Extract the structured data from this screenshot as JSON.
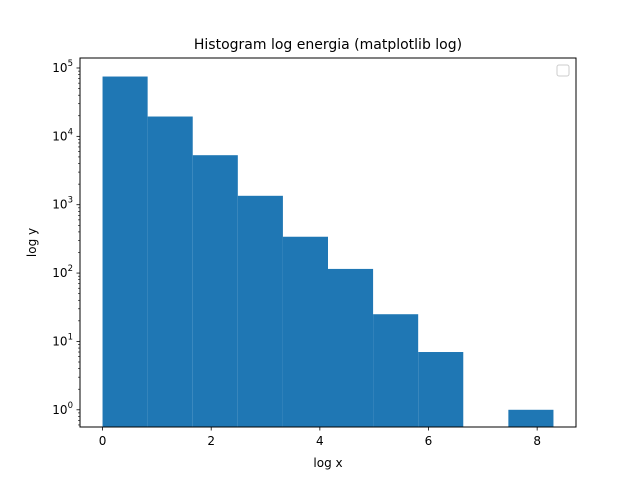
{
  "chart_data": {
    "type": "bar",
    "title": "Histogram log energia (matplotlib log)",
    "xlabel": "log x",
    "ylabel": "log y",
    "yscale": "log",
    "xlim": [
      -0.415,
      8.715
    ],
    "ylim": [
      0.56,
      140000
    ],
    "grid": false,
    "legend": {
      "placement": "top-right",
      "entries": []
    },
    "x_ticks": [
      0,
      2,
      4,
      6,
      8
    ],
    "y_ticks": [
      1,
      10,
      100,
      1000,
      10000,
      100000
    ],
    "y_tick_labels": [
      {
        "base": "10",
        "exp": "0"
      },
      {
        "base": "10",
        "exp": "1"
      },
      {
        "base": "10",
        "exp": "2"
      },
      {
        "base": "10",
        "exp": "3"
      },
      {
        "base": "10",
        "exp": "4"
      },
      {
        "base": "10",
        "exp": "5"
      }
    ],
    "bins": [
      {
        "x0": 0.0,
        "x1": 0.83,
        "count": 75000
      },
      {
        "x0": 0.83,
        "x1": 1.66,
        "count": 19500
      },
      {
        "x0": 1.66,
        "x1": 2.49,
        "count": 5300
      },
      {
        "x0": 2.49,
        "x1": 3.32,
        "count": 1350
      },
      {
        "x0": 3.32,
        "x1": 4.15,
        "count": 340
      },
      {
        "x0": 4.15,
        "x1": 4.98,
        "count": 115
      },
      {
        "x0": 4.98,
        "x1": 5.81,
        "count": 25
      },
      {
        "x0": 5.81,
        "x1": 6.64,
        "count": 7
      },
      {
        "x0": 6.64,
        "x1": 7.47,
        "count": 0
      },
      {
        "x0": 7.47,
        "x1": 8.3,
        "count": 1
      }
    ],
    "bar_color": "#1f77b4"
  }
}
